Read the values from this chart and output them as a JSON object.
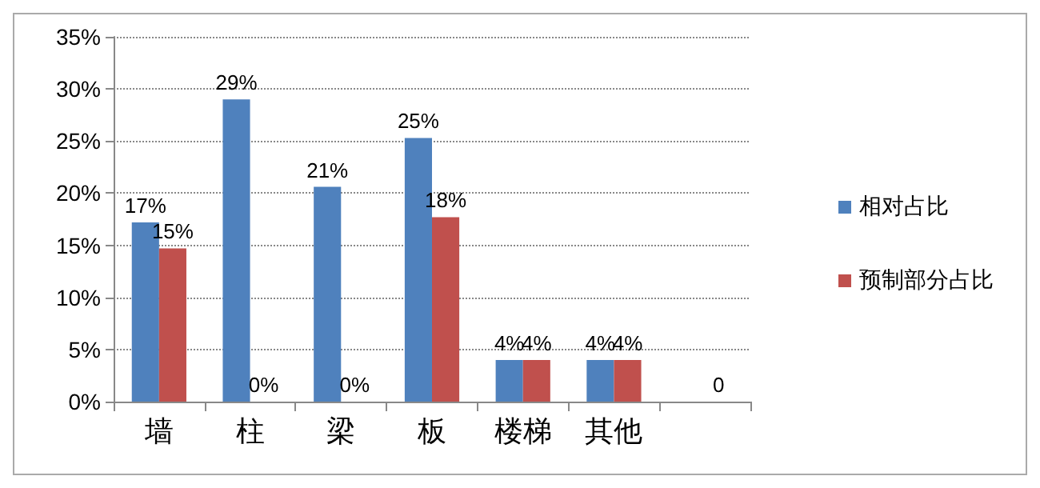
{
  "chart_data": {
    "type": "bar",
    "categories": [
      "墙",
      "柱",
      "梁",
      "板",
      "楼梯",
      "其他",
      null
    ],
    "series": [
      {
        "name": "相对占比",
        "color": "#4f81bd",
        "values": [
          17.2,
          29,
          20.6,
          25.3,
          4,
          4,
          null
        ],
        "value_labels": [
          "17%",
          "29%",
          "21%",
          "25%",
          "4%",
          "4%",
          null
        ]
      },
      {
        "name": "预制部分占比",
        "color": "#c0504d",
        "values": [
          14.7,
          0,
          0,
          17.7,
          4,
          4,
          0
        ],
        "value_labels": [
          "15%",
          "0%",
          "0%",
          "18%",
          "4%",
          "4%",
          "0"
        ]
      }
    ],
    "ylim": [
      0,
      35
    ],
    "yticks": [
      {
        "value": 0,
        "label": "0%"
      },
      {
        "value": 5,
        "label": "5%"
      },
      {
        "value": 10,
        "label": "10%"
      },
      {
        "value": 15,
        "label": "15%"
      },
      {
        "value": 20,
        "label": "20%"
      },
      {
        "value": 25,
        "label": "25%"
      },
      {
        "value": 30,
        "label": "30%"
      },
      {
        "value": 35,
        "label": "35%"
      }
    ],
    "grid": "y",
    "legend": "right"
  }
}
